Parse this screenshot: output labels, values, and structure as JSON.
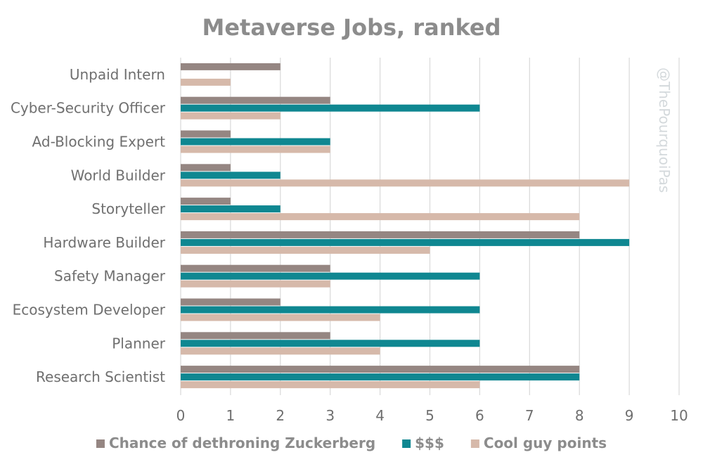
{
  "chart_data": {
    "type": "bar",
    "orientation": "horizontal",
    "title": "Metaverse Jobs, ranked",
    "watermark": "@ThePourquoiPas",
    "categories": [
      "Unpaid Intern",
      "Cyber-Security Officer",
      "Ad-Blocking Expert",
      "World Builder",
      "Storyteller",
      "Hardware Builder",
      "Safety Manager",
      "Ecosystem Developer",
      "Planner",
      "Research Scientist"
    ],
    "series": [
      {
        "name": "Chance of dethroning Zuckerberg",
        "color": "#958682",
        "values": [
          2,
          3,
          1,
          1,
          1,
          8,
          3,
          2,
          3,
          8
        ]
      },
      {
        "name": "$$$",
        "color": "#0f8791",
        "values": [
          0,
          6,
          3,
          2,
          2,
          9,
          6,
          6,
          6,
          8
        ]
      },
      {
        "name": "Cool guy points",
        "color": "#d6b9aa",
        "values": [
          1,
          2,
          3,
          9,
          8,
          5,
          3,
          4,
          4,
          6
        ]
      }
    ],
    "xlim": [
      0,
      10
    ],
    "xticks": [
      "0",
      "1",
      "2",
      "3",
      "4",
      "5",
      "6",
      "7",
      "8",
      "9",
      "10"
    ],
    "grid": true,
    "legend": "bottom"
  }
}
